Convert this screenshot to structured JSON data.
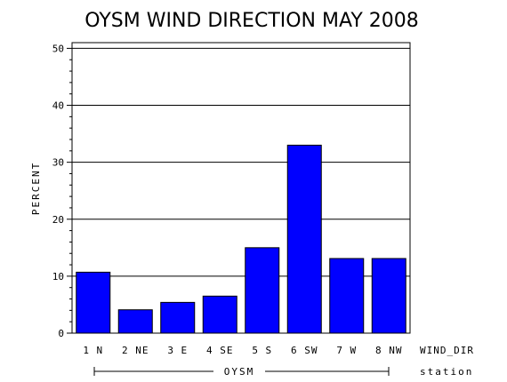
{
  "chart_data": {
    "type": "bar",
    "title": "OYSM WIND DIRECTION MAY 2008",
    "ylabel": "PERCENT",
    "xlabel": "WIND_DIR",
    "group_axis_label": "station",
    "group_name": "OYSM",
    "categories": [
      "1 N",
      "2 NE",
      "3 E",
      "4 SE",
      "5 S",
      "6 SW",
      "7 W",
      "8 NW"
    ],
    "values": [
      10.7,
      4.1,
      5.4,
      6.5,
      15.0,
      33.0,
      13.1,
      13.1
    ],
    "yticks": [
      "0",
      "10",
      "20",
      "30",
      "40",
      "50"
    ],
    "ylim": [
      0,
      51
    ],
    "grid": true,
    "bar_color": "#0000ff"
  }
}
